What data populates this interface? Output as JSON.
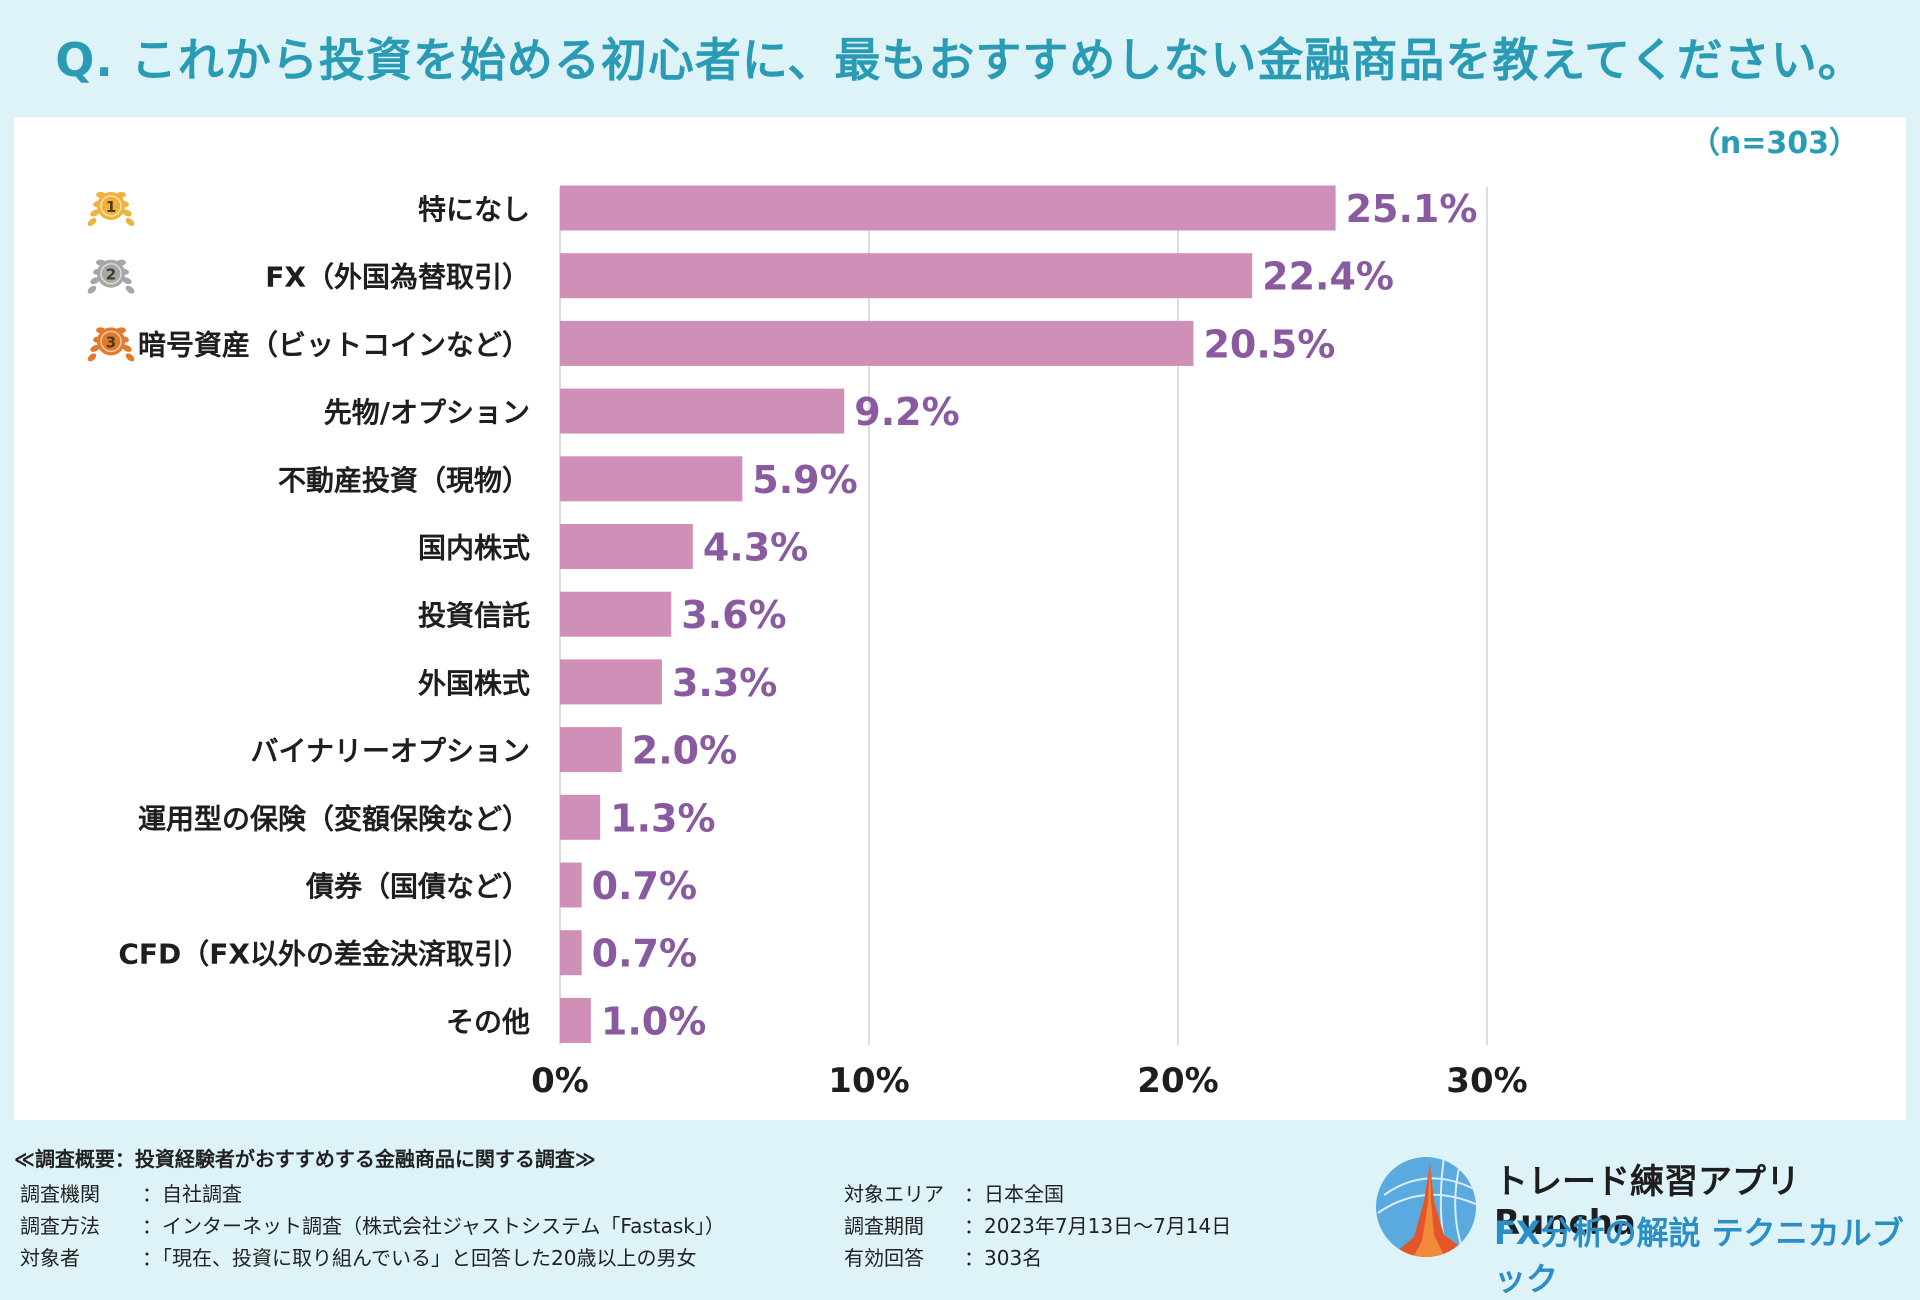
{
  "header": {
    "title": "Q. これから投資を始める初心者に、最もおすすめしない金融商品を教えてください。"
  },
  "chart_data": {
    "type": "bar",
    "orientation": "horizontal",
    "title": "Q. これから投資を始める初心者に、最もおすすめしない金融商品を教えてください。",
    "sample_note": "（n=303）",
    "categories": [
      "特になし",
      "FX（外国為替取引）",
      "暗号資産（ビットコインなど）",
      "先物/オプション",
      "不動産投資（現物）",
      "国内株式",
      "投資信託",
      "外国株式",
      "バイナリーオプション",
      "運用型の保険（変額保険など）",
      "債券（国債など）",
      "CFD（FX以外の差金決済取引）",
      "その他"
    ],
    "values": [
      25.1,
      22.4,
      20.5,
      9.2,
      5.9,
      4.3,
      3.6,
      3.3,
      2.0,
      1.3,
      0.7,
      0.7,
      1.0
    ],
    "value_labels": [
      "25.1%",
      "22.4%",
      "20.5%",
      "9.2%",
      "5.9%",
      "4.3%",
      "3.6%",
      "3.3%",
      "2.0%",
      "1.3%",
      "0.7%",
      "0.7%",
      "1.0%"
    ],
    "rank_badges": [
      "1",
      "2",
      "3"
    ],
    "xlim": [
      0,
      30
    ],
    "xticks": [
      0,
      10,
      20,
      30
    ],
    "xtick_labels": [
      "0%",
      "10%",
      "20%",
      "30%"
    ],
    "grid": true,
    "colors": {
      "bar": "#d08fb6",
      "value_label": "#8a5aa1",
      "grid": "#dddddd",
      "gold": "#f0b23a",
      "silver": "#a6a6a6",
      "bronze": "#e07a2c"
    }
  },
  "survey": {
    "header": "≪調査概要：投資経験者がおすすめする金融商品に関する調査≫",
    "left": [
      {
        "label": "調査機関",
        "value": "：自社調査"
      },
      {
        "label": "調査方法",
        "value": "：インターネット調査（株式会社ジャストシステム「Fastask」）"
      },
      {
        "label": "対象者",
        "value": "：「現在、投資に取り組んでいる」と回答した20歳以上の男女"
      }
    ],
    "right": [
      {
        "label": "対象エリア",
        "value": "：日本全国"
      },
      {
        "label": "調査期間",
        "value": "：2023年7月13日〜7月14日"
      },
      {
        "label": "有効回答",
        "value": "：303名"
      }
    ]
  },
  "brand": {
    "line1": "トレード練習アプリ  Runcha",
    "line2": "FX分析の解説  テクニカルブック",
    "logo_icon": "runcha-logo-icon"
  }
}
